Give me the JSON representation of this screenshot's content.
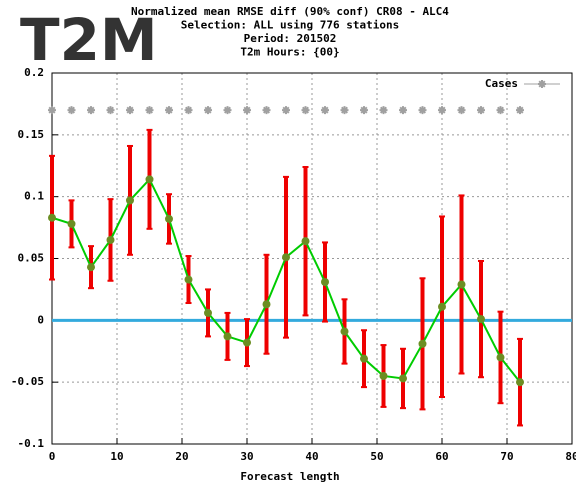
{
  "chart_data": {
    "type": "line",
    "badge": "T2M",
    "title_lines": [
      "Normalized mean RMSE diff (90% conf) CR08 - ALC4",
      "Selection: ALL using   776 stations",
      "Period:   201502",
      "T2m   Hours: {00}"
    ],
    "xlabel": "Forecast length",
    "x": [
      0,
      3,
      6,
      9,
      12,
      15,
      18,
      21,
      24,
      27,
      30,
      33,
      36,
      39,
      42,
      45,
      48,
      51,
      54,
      57,
      60,
      63,
      66,
      69,
      72
    ],
    "series": [
      {
        "color": "#00cc00",
        "marker_color": "#6b8e23",
        "error_color": "#ee0000",
        "values": [
          0.083,
          0.078,
          0.043,
          0.065,
          0.097,
          0.114,
          0.082,
          0.033,
          0.006,
          -0.013,
          -0.018,
          0.013,
          0.051,
          0.064,
          0.031,
          -0.009,
          -0.031,
          -0.045,
          -0.047,
          -0.019,
          0.011,
          0.029,
          0.001,
          -0.03,
          -0.05
        ],
        "errors": [
          0.05,
          0.019,
          0.017,
          0.033,
          0.044,
          0.04,
          0.02,
          0.019,
          0.019,
          0.019,
          0.019,
          0.04,
          0.065,
          0.06,
          0.032,
          0.026,
          0.023,
          0.025,
          0.024,
          0.053,
          0.073,
          0.072,
          0.047,
          0.037,
          0.035
        ]
      },
      {
        "name": "Cases",
        "color": "#a0a0a0",
        "values": [
          0.17,
          0.17,
          0.17,
          0.17,
          0.17,
          0.17,
          0.17,
          0.17,
          0.17,
          0.17,
          0.17,
          0.17,
          0.17,
          0.17,
          0.17,
          0.17,
          0.17,
          0.17,
          0.17,
          0.17,
          0.17,
          0.17,
          0.17,
          0.17,
          0.17
        ]
      }
    ],
    "zero_line_color": "#33aadd",
    "xlim": [
      0,
      80
    ],
    "xticks": [
      0,
      10,
      20,
      30,
      40,
      50,
      60,
      70,
      80
    ],
    "ylim": [
      -0.1,
      0.2
    ],
    "yticks": [
      -0.1,
      -0.05,
      0,
      0.05,
      0.1,
      0.15,
      0.2
    ],
    "grid": true,
    "legend": "upper right"
  }
}
